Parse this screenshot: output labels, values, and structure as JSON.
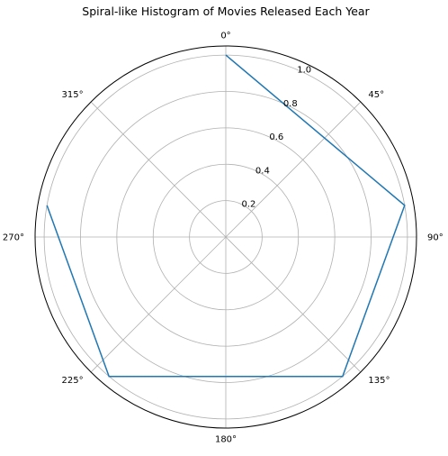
{
  "chart_data": {
    "type": "line",
    "projection": "polar",
    "title": "Spiral-like Histogram of Movies Released Each Year",
    "theta_zero_location": "N",
    "theta_direction": "clockwise",
    "theta_ticks_deg": [
      0,
      45,
      90,
      135,
      180,
      225,
      270,
      315
    ],
    "theta_tick_labels": [
      "0°",
      "45°",
      "90°",
      "135°",
      "180°",
      "225°",
      "270°",
      "315°"
    ],
    "r_ticks": [
      0.2,
      0.4,
      0.6,
      0.8,
      1.0
    ],
    "r_tick_labels": [
      "0.2",
      "0.4",
      "0.6",
      "0.8",
      "1.0"
    ],
    "rlim": [
      0,
      1.05
    ],
    "grid": true,
    "series": [
      {
        "color": "#1f77b4",
        "theta_deg": [
          0,
          80,
          140,
          220,
          280
        ],
        "r": [
          1.0,
          1.0,
          1.0,
          1.0,
          1.0
        ]
      }
    ]
  }
}
